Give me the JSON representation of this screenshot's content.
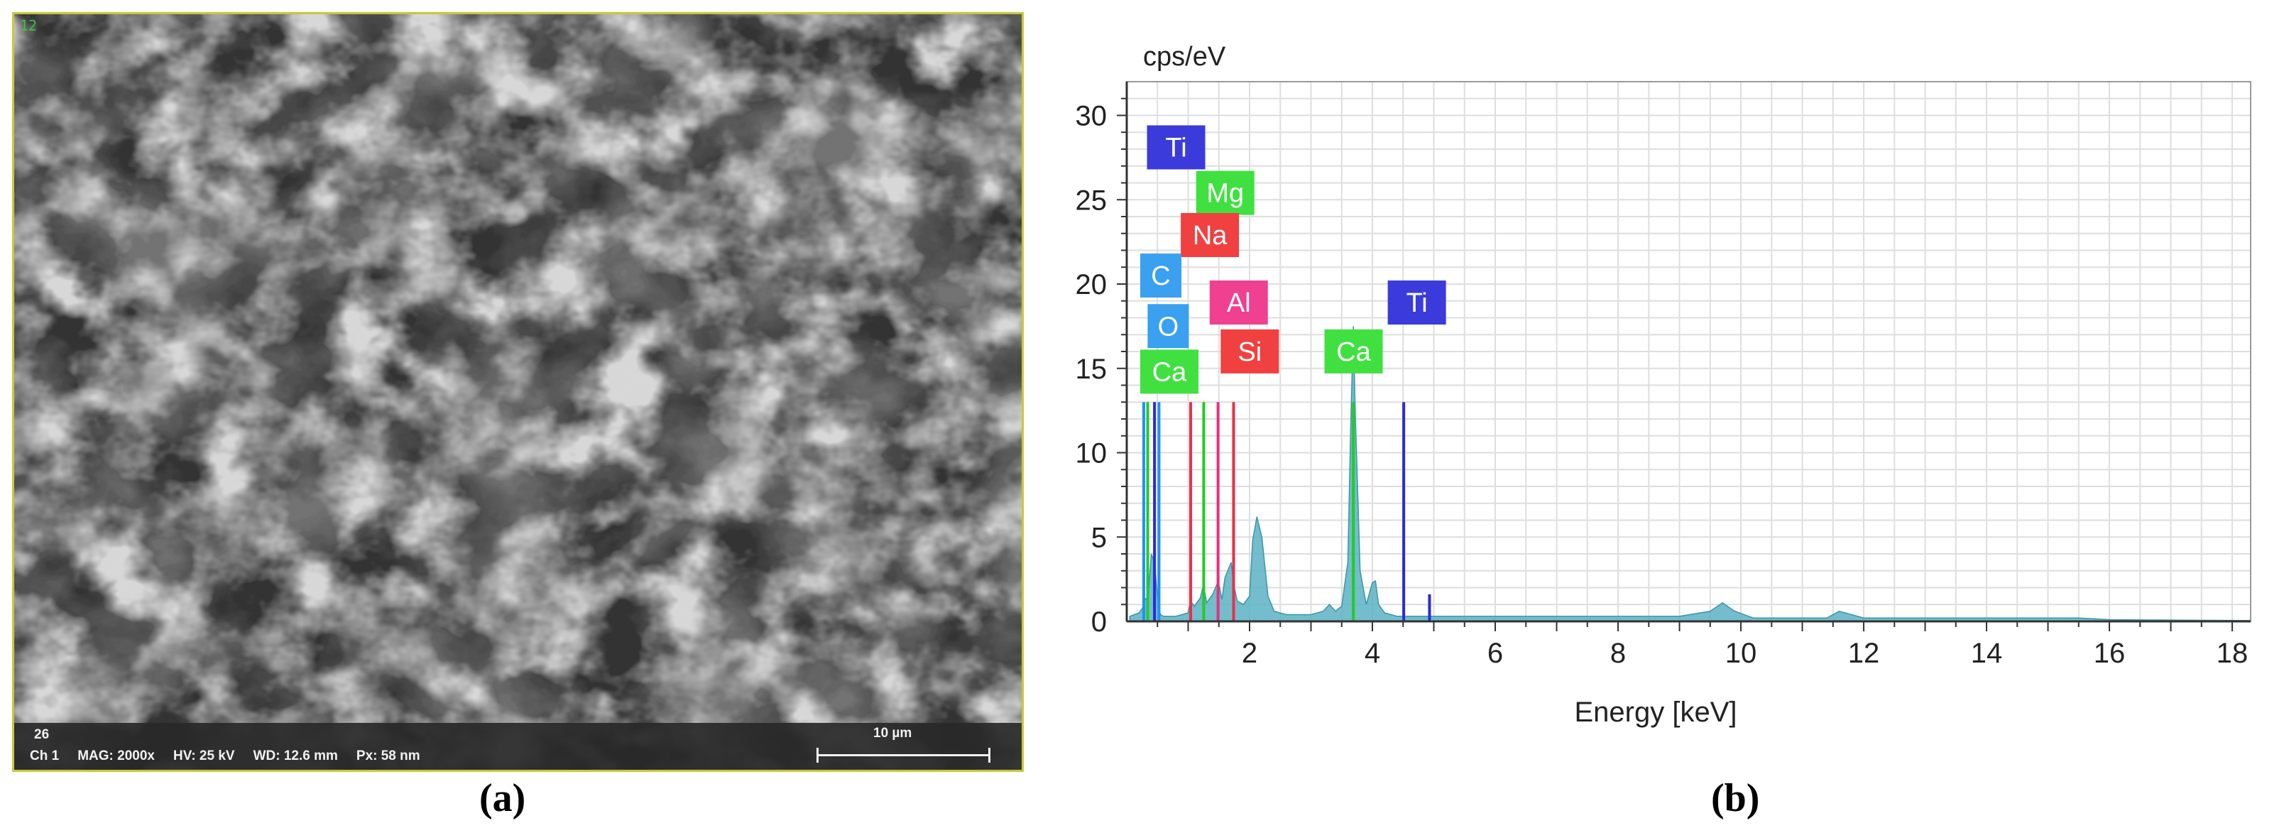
{
  "sem_image": {
    "corner_number": "12",
    "info_bar": {
      "line1": "26",
      "channel": "Ch 1",
      "mag": "MAG: 2000x",
      "hv": "HV: 25 kV",
      "wd": "WD: 12.6 mm",
      "px": "Px: 58 nm",
      "scale_label": "10 µm"
    },
    "panel_label": "(a)"
  },
  "spectrum_panel_label": "(b)",
  "chart_data": {
    "type": "line",
    "ylabel": "cps/eV",
    "xlabel": "Energy [keV]",
    "xlim": [
      0,
      18.3
    ],
    "ylim": [
      0,
      32
    ],
    "xticks": [
      2,
      4,
      6,
      8,
      10,
      12,
      14,
      16,
      18
    ],
    "yticks": [
      0,
      5,
      10,
      15,
      20,
      25,
      30
    ],
    "grid": true,
    "colors": {
      "spectrum": "#5bb2c4",
      "frame": "#9a9a9a",
      "grid": "#dedede"
    },
    "spectrum": {
      "x": [
        0.05,
        0.2,
        0.26,
        0.28,
        0.35,
        0.4,
        0.45,
        0.5,
        0.52,
        0.55,
        0.6,
        0.7,
        0.8,
        0.9,
        1.0,
        1.04,
        1.1,
        1.2,
        1.25,
        1.3,
        1.4,
        1.49,
        1.55,
        1.6,
        1.7,
        1.74,
        1.8,
        1.9,
        2.0,
        2.05,
        2.12,
        2.2,
        2.3,
        2.4,
        2.6,
        2.8,
        3.0,
        3.2,
        3.3,
        3.4,
        3.5,
        3.6,
        3.65,
        3.69,
        3.72,
        3.8,
        3.9,
        4.0,
        4.05,
        4.1,
        4.2,
        4.4,
        4.6,
        4.8,
        5.0,
        6.0,
        7.0,
        8.0,
        9.0,
        9.5,
        9.7,
        9.9,
        10.2,
        11.0,
        11.4,
        11.6,
        12.0,
        13.0,
        14.0,
        15.0,
        15.5,
        16.0,
        18.3
      ],
      "y": [
        0.3,
        0.5,
        0.8,
        1.2,
        1.5,
        4.0,
        3.5,
        1.5,
        0.8,
        0.4,
        0.3,
        0.3,
        0.3,
        0.4,
        0.5,
        1.2,
        0.9,
        1.4,
        2.2,
        1.1,
        1.6,
        2.4,
        1.3,
        2.6,
        3.5,
        2.2,
        1.2,
        1.0,
        1.5,
        4.8,
        6.2,
        5.0,
        1.5,
        0.6,
        0.4,
        0.4,
        0.4,
        0.6,
        1.0,
        0.6,
        0.9,
        3.5,
        12.0,
        17.5,
        12.5,
        3.0,
        1.0,
        2.3,
        2.4,
        1.0,
        0.5,
        0.3,
        0.3,
        0.3,
        0.3,
        0.3,
        0.3,
        0.3,
        0.3,
        0.6,
        1.1,
        0.6,
        0.2,
        0.2,
        0.2,
        0.6,
        0.2,
        0.2,
        0.2,
        0.2,
        0.2,
        0.1,
        0.05
      ]
    },
    "element_lines": [
      {
        "element": "C",
        "energy": 0.277,
        "height": 13.0,
        "color": "#1e90ff"
      },
      {
        "element": "O",
        "energy": 0.525,
        "height": 13.0,
        "color": "#1e90ff"
      },
      {
        "element": "Ca",
        "energy": 0.341,
        "height": 13.0,
        "color": "#22cc22"
      },
      {
        "element": "Ti",
        "energy": 0.452,
        "height": 13.0,
        "color": "#2a2ad8"
      },
      {
        "element": "Na",
        "energy": 1.041,
        "height": 13.0,
        "color": "#e8304a"
      },
      {
        "element": "Mg",
        "energy": 1.254,
        "height": 13.0,
        "color": "#22cc22"
      },
      {
        "element": "Al",
        "energy": 1.487,
        "height": 13.0,
        "color": "#e8307a"
      },
      {
        "element": "Si",
        "energy": 1.74,
        "height": 13.0,
        "color": "#e8304a"
      },
      {
        "element": "Ca",
        "energy": 3.69,
        "height": 13.0,
        "color": "#22cc22"
      },
      {
        "element": "Ti",
        "energy": 4.51,
        "height": 13.0,
        "color": "#2a2ad8"
      },
      {
        "element": "Ti",
        "energy": 4.93,
        "height": 1.6,
        "color": "#2a2ad8"
      }
    ],
    "element_labels": [
      {
        "label": "Ti",
        "x": 0.33,
        "y": 26.8,
        "fill": "#3b3bdc"
      },
      {
        "label": "Mg",
        "x": 1.13,
        "y": 24.1,
        "fill": "#40e040"
      },
      {
        "label": "Na",
        "x": 0.88,
        "y": 21.6,
        "fill": "#f04040"
      },
      {
        "label": "C",
        "x": 0.22,
        "y": 19.2,
        "fill": "#3aa0f0"
      },
      {
        "label": "Al",
        "x": 1.35,
        "y": 17.6,
        "fill": "#f04090"
      },
      {
        "label": "Ti",
        "x": 4.25,
        "y": 17.6,
        "fill": "#3b3bdc"
      },
      {
        "label": "O",
        "x": 0.34,
        "y": 16.2,
        "fill": "#3aa0f0"
      },
      {
        "label": "Si",
        "x": 1.53,
        "y": 14.7,
        "fill": "#f04040"
      },
      {
        "label": "Ca",
        "x": 3.22,
        "y": 14.7,
        "fill": "#40e040"
      },
      {
        "label": "Ca",
        "x": 0.22,
        "y": 13.5,
        "fill": "#40e040"
      }
    ]
  }
}
